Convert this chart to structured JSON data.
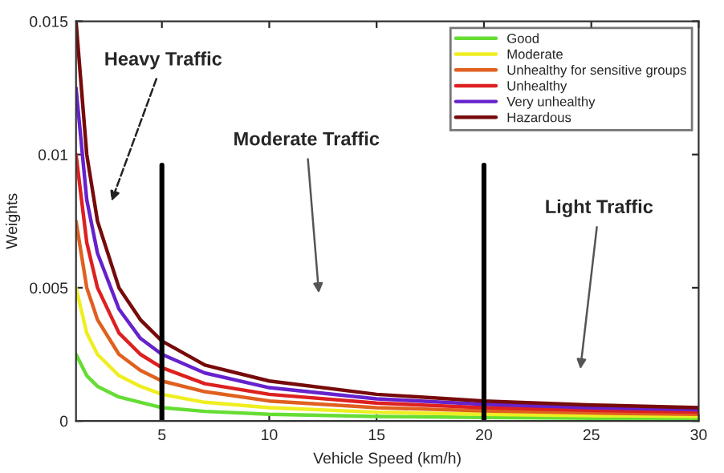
{
  "chart_data": {
    "type": "line",
    "xlabel": "Vehicle Speed (km/h)",
    "ylabel": "Weights",
    "xlim": [
      1,
      30
    ],
    "ylim": [
      0,
      0.015
    ],
    "xticks": [
      5,
      10,
      15,
      20,
      25,
      30
    ],
    "yticks": [
      0,
      0.005,
      0.01,
      0.015
    ],
    "grid": false,
    "legend": "top right",
    "marker": "none",
    "line_style": "solid",
    "x": [
      1,
      1.5,
      2,
      3,
      4,
      5,
      7,
      10,
      15,
      20,
      25,
      30
    ],
    "series": [
      {
        "name": "Good",
        "color": "#66dd33",
        "values": [
          0.0025,
          0.0017,
          0.0013,
          0.0009,
          0.0007,
          0.0005,
          0.00036,
          0.00025,
          0.00017,
          0.00013,
          0.0001,
          0.0001
        ]
      },
      {
        "name": "Moderate",
        "color": "#eeee22",
        "values": [
          0.005,
          0.0033,
          0.0025,
          0.0017,
          0.0013,
          0.001,
          0.0007,
          0.0005,
          0.00033,
          0.00025,
          0.0002,
          0.00017
        ]
      },
      {
        "name": "Unhealthy for sensitive groups",
        "color": "#e06020",
        "values": [
          0.0075,
          0.005,
          0.0038,
          0.0025,
          0.0019,
          0.0015,
          0.0011,
          0.00075,
          0.0005,
          0.00038,
          0.0003,
          0.00025
        ]
      },
      {
        "name": "Unhealthy",
        "color": "#dd2020",
        "values": [
          0.01,
          0.0067,
          0.005,
          0.0033,
          0.0025,
          0.002,
          0.0014,
          0.001,
          0.00067,
          0.0005,
          0.0004,
          0.00033
        ]
      },
      {
        "name": "Very unhealthy",
        "color": "#6622cc",
        "values": [
          0.0125,
          0.0083,
          0.0063,
          0.0042,
          0.0031,
          0.0025,
          0.0018,
          0.00125,
          0.00083,
          0.00063,
          0.0005,
          0.00042
        ]
      },
      {
        "name": "Hazardous",
        "color": "#770a0a",
        "values": [
          0.015,
          0.01,
          0.0075,
          0.005,
          0.0038,
          0.003,
          0.0021,
          0.0015,
          0.001,
          0.00075,
          0.0006,
          0.0005
        ]
      }
    ],
    "ref_lines": [
      {
        "axis": "x",
        "value": 5,
        "color": "#000000"
      },
      {
        "axis": "x",
        "value": 20,
        "color": "#000000"
      }
    ],
    "annotations": [
      "Heavy Traffic",
      "Moderate Traffic",
      "Light Traffic"
    ]
  }
}
